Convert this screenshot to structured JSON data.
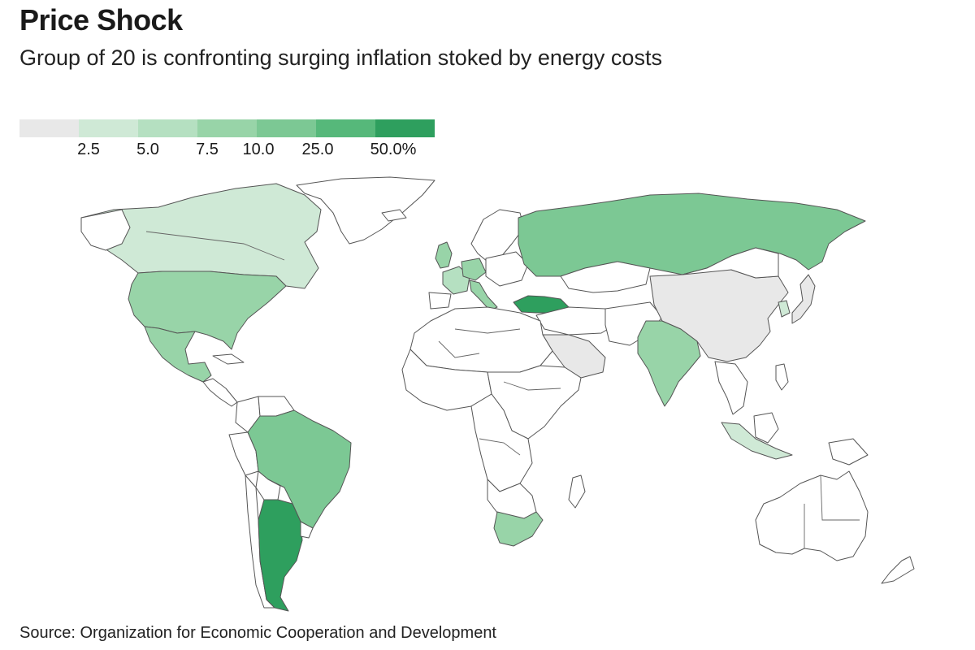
{
  "header": {
    "title": "Price Shock",
    "subtitle": "Group of 20 is confronting surging inflation stoked by energy costs"
  },
  "legend": {
    "bins": [
      {
        "color": "#e8e8e8"
      },
      {
        "color": "#cfe9d6"
      },
      {
        "color": "#b5e0c1"
      },
      {
        "color": "#98d4a8"
      },
      {
        "color": "#7cc894"
      },
      {
        "color": "#56b87a"
      },
      {
        "color": "#2e9f5e"
      }
    ],
    "ticks": [
      "2.5",
      "5.0",
      "7.5",
      "10.0",
      "25.0",
      "50.0%"
    ]
  },
  "map": {
    "no_data_color": "#ffffff",
    "countries": [
      {
        "name": "Canada",
        "bin": 1
      },
      {
        "name": "United States",
        "bin": 3
      },
      {
        "name": "Mexico",
        "bin": 3
      },
      {
        "name": "Brazil",
        "bin": 4
      },
      {
        "name": "Argentina",
        "bin": 6
      },
      {
        "name": "United Kingdom",
        "bin": 3
      },
      {
        "name": "France",
        "bin": 2
      },
      {
        "name": "Germany",
        "bin": 3
      },
      {
        "name": "Italy",
        "bin": 3
      },
      {
        "name": "Russia",
        "bin": 4
      },
      {
        "name": "Turkey",
        "bin": 6
      },
      {
        "name": "Saudi Arabia",
        "bin": 0
      },
      {
        "name": "India",
        "bin": 3
      },
      {
        "name": "China",
        "bin": 0
      },
      {
        "name": "Japan",
        "bin": 0
      },
      {
        "name": "South Korea",
        "bin": 1
      },
      {
        "name": "Indonesia",
        "bin": 1
      },
      {
        "name": "South Africa",
        "bin": 3
      },
      {
        "name": "Australia",
        "bin": -1
      }
    ]
  },
  "footer": {
    "source": "Source: Organization for Economic Cooperation and Development"
  }
}
